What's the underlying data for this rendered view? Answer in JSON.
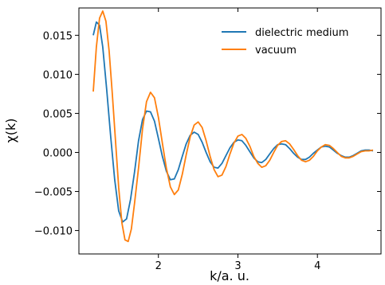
{
  "colors": {
    "dielectric": "#1f77b4",
    "vacuum": "#ff7f0e"
  },
  "chart_data": {
    "type": "line",
    "xlabel": "k/a. u.",
    "ylabel": "χ(k)",
    "xlim": [
      1.0,
      4.8
    ],
    "ylim": [
      -0.013,
      0.0185
    ],
    "xticks": [
      {
        "value": 2,
        "label": "2"
      },
      {
        "value": 3,
        "label": "3"
      },
      {
        "value": 4,
        "label": "4"
      }
    ],
    "yticks": [
      {
        "value": 0.015,
        "label": "0.015"
      },
      {
        "value": 0.01,
        "label": "0.010"
      },
      {
        "value": 0.005,
        "label": "0.005"
      },
      {
        "value": 0.0,
        "label": "0.000"
      },
      {
        "value": -0.005,
        "label": "−0.005"
      },
      {
        "value": -0.01,
        "label": "−0.010"
      }
    ],
    "grid": false,
    "legend": "top-right",
    "series": [
      {
        "name": "dielectric medium",
        "color": "#1f77b4",
        "points": [
          [
            1.18,
            0.015
          ],
          [
            1.22,
            0.0167
          ],
          [
            1.26,
            0.0163
          ],
          [
            1.3,
            0.0135
          ],
          [
            1.35,
            0.008
          ],
          [
            1.4,
            0.002
          ],
          [
            1.45,
            -0.0035
          ],
          [
            1.5,
            -0.0075
          ],
          [
            1.55,
            -0.0089
          ],
          [
            1.6,
            -0.0085
          ],
          [
            1.65,
            -0.006
          ],
          [
            1.7,
            -0.0025
          ],
          [
            1.75,
            0.0015
          ],
          [
            1.8,
            0.0042
          ],
          [
            1.85,
            0.0053
          ],
          [
            1.9,
            0.0052
          ],
          [
            1.95,
            0.004
          ],
          [
            2.0,
            0.0018
          ],
          [
            2.05,
            -0.0005
          ],
          [
            2.1,
            -0.0024
          ],
          [
            2.15,
            -0.0035
          ],
          [
            2.2,
            -0.0034
          ],
          [
            2.25,
            -0.0022
          ],
          [
            2.3,
            -0.0005
          ],
          [
            2.35,
            0.0011
          ],
          [
            2.4,
            0.0022
          ],
          [
            2.45,
            0.0026
          ],
          [
            2.5,
            0.0023
          ],
          [
            2.55,
            0.0013
          ],
          [
            2.6,
            0.0
          ],
          [
            2.65,
            -0.0012
          ],
          [
            2.7,
            -0.0019
          ],
          [
            2.75,
            -0.002
          ],
          [
            2.8,
            -0.0014
          ],
          [
            2.85,
            -0.0004
          ],
          [
            2.9,
            0.0006
          ],
          [
            2.95,
            0.0013
          ],
          [
            3.0,
            0.0016
          ],
          [
            3.05,
            0.0015
          ],
          [
            3.1,
            0.0009
          ],
          [
            3.15,
            0.0001
          ],
          [
            3.2,
            -0.0007
          ],
          [
            3.25,
            -0.0012
          ],
          [
            3.3,
            -0.0013
          ],
          [
            3.35,
            -0.0009
          ],
          [
            3.4,
            -0.0002
          ],
          [
            3.45,
            0.0005
          ],
          [
            3.5,
            0.001
          ],
          [
            3.55,
            0.0011
          ],
          [
            3.6,
            0.001
          ],
          [
            3.65,
            0.0005
          ],
          [
            3.7,
            -0.0001
          ],
          [
            3.75,
            -0.0006
          ],
          [
            3.8,
            -0.0009
          ],
          [
            3.85,
            -0.0009
          ],
          [
            3.9,
            -0.0006
          ],
          [
            3.95,
            -0.0001
          ],
          [
            4.0,
            0.0003
          ],
          [
            4.05,
            0.0007
          ],
          [
            4.1,
            0.0008
          ],
          [
            4.15,
            0.0007
          ],
          [
            4.2,
            0.0003
          ],
          [
            4.25,
            -0.0001
          ],
          [
            4.3,
            -0.0004
          ],
          [
            4.35,
            -0.0006
          ],
          [
            4.4,
            -0.0006
          ],
          [
            4.45,
            -0.0004
          ],
          [
            4.5,
            -0.0001
          ],
          [
            4.55,
            0.0002
          ],
          [
            4.6,
            0.0003
          ],
          [
            4.65,
            0.0003
          ],
          [
            4.7,
            0.0002
          ]
        ]
      },
      {
        "name": "vacuum",
        "color": "#ff7f0e",
        "points": [
          [
            1.18,
            0.0078
          ],
          [
            1.22,
            0.0135
          ],
          [
            1.26,
            0.0172
          ],
          [
            1.3,
            0.0181
          ],
          [
            1.34,
            0.0168
          ],
          [
            1.38,
            0.013
          ],
          [
            1.42,
            0.0075
          ],
          [
            1.46,
            0.0015
          ],
          [
            1.5,
            -0.0045
          ],
          [
            1.54,
            -0.009
          ],
          [
            1.58,
            -0.0112
          ],
          [
            1.62,
            -0.0114
          ],
          [
            1.66,
            -0.0098
          ],
          [
            1.7,
            -0.0065
          ],
          [
            1.75,
            -0.002
          ],
          [
            1.8,
            0.003
          ],
          [
            1.85,
            0.0065
          ],
          [
            1.9,
            0.0077
          ],
          [
            1.95,
            0.007
          ],
          [
            2.0,
            0.0045
          ],
          [
            2.05,
            0.0012
          ],
          [
            2.1,
            -0.002
          ],
          [
            2.15,
            -0.0044
          ],
          [
            2.2,
            -0.0054
          ],
          [
            2.25,
            -0.0048
          ],
          [
            2.3,
            -0.0028
          ],
          [
            2.35,
            -0.0003
          ],
          [
            2.4,
            0.002
          ],
          [
            2.45,
            0.0035
          ],
          [
            2.5,
            0.0039
          ],
          [
            2.55,
            0.0032
          ],
          [
            2.6,
            0.0015
          ],
          [
            2.65,
            -0.0005
          ],
          [
            2.7,
            -0.0022
          ],
          [
            2.75,
            -0.0031
          ],
          [
            2.8,
            -0.0029
          ],
          [
            2.85,
            -0.0018
          ],
          [
            2.9,
            -0.0002
          ],
          [
            2.95,
            0.0012
          ],
          [
            3.0,
            0.0021
          ],
          [
            3.05,
            0.0023
          ],
          [
            3.1,
            0.0018
          ],
          [
            3.15,
            0.0008
          ],
          [
            3.2,
            -0.0005
          ],
          [
            3.25,
            -0.0014
          ],
          [
            3.3,
            -0.0019
          ],
          [
            3.35,
            -0.0017
          ],
          [
            3.4,
            -0.001
          ],
          [
            3.45,
            0.0
          ],
          [
            3.5,
            0.0009
          ],
          [
            3.55,
            0.0014
          ],
          [
            3.6,
            0.0015
          ],
          [
            3.65,
            0.0011
          ],
          [
            3.7,
            0.0004
          ],
          [
            3.75,
            -0.0004
          ],
          [
            3.8,
            -0.001
          ],
          [
            3.85,
            -0.0012
          ],
          [
            3.9,
            -0.001
          ],
          [
            3.95,
            -0.0005
          ],
          [
            4.0,
            0.0002
          ],
          [
            4.05,
            0.0007
          ],
          [
            4.1,
            0.001
          ],
          [
            4.15,
            0.0009
          ],
          [
            4.2,
            0.0005
          ],
          [
            4.25,
            0.0
          ],
          [
            4.3,
            -0.0005
          ],
          [
            4.35,
            -0.0007
          ],
          [
            4.4,
            -0.0007
          ],
          [
            4.45,
            -0.0005
          ],
          [
            4.5,
            -0.0002
          ],
          [
            4.55,
            0.0001
          ],
          [
            4.6,
            0.0002
          ],
          [
            4.65,
            0.0002
          ],
          [
            4.7,
            0.0003
          ]
        ]
      }
    ]
  }
}
